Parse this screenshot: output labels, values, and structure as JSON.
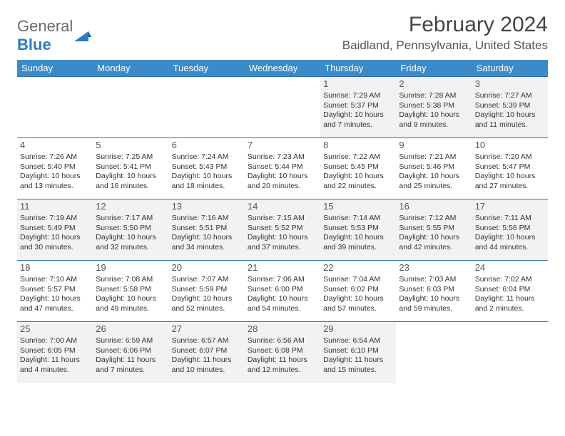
{
  "logo": {
    "part1": "General",
    "part2": "Blue"
  },
  "title": "February 2024",
  "location": "Baidland, Pennsylvania, United States",
  "colors": {
    "header_bg": "#3b8bc9",
    "header_text": "#ffffff",
    "row_border": "#2f6ea8",
    "shade_bg": "#f2f2f2",
    "text": "#333333",
    "logo_gray": "#6b6b6b",
    "logo_blue": "#2f7ac0"
  },
  "dayHeaders": [
    "Sunday",
    "Monday",
    "Tuesday",
    "Wednesday",
    "Thursday",
    "Friday",
    "Saturday"
  ],
  "weeks": [
    [
      null,
      null,
      null,
      null,
      {
        "n": "1",
        "sr": "7:29 AM",
        "ss": "5:37 PM",
        "dl": "10 hours and 7 minutes."
      },
      {
        "n": "2",
        "sr": "7:28 AM",
        "ss": "5:38 PM",
        "dl": "10 hours and 9 minutes."
      },
      {
        "n": "3",
        "sr": "7:27 AM",
        "ss": "5:39 PM",
        "dl": "10 hours and 11 minutes."
      }
    ],
    [
      {
        "n": "4",
        "sr": "7:26 AM",
        "ss": "5:40 PM",
        "dl": "10 hours and 13 minutes."
      },
      {
        "n": "5",
        "sr": "7:25 AM",
        "ss": "5:41 PM",
        "dl": "10 hours and 16 minutes."
      },
      {
        "n": "6",
        "sr": "7:24 AM",
        "ss": "5:43 PM",
        "dl": "10 hours and 18 minutes."
      },
      {
        "n": "7",
        "sr": "7:23 AM",
        "ss": "5:44 PM",
        "dl": "10 hours and 20 minutes."
      },
      {
        "n": "8",
        "sr": "7:22 AM",
        "ss": "5:45 PM",
        "dl": "10 hours and 22 minutes."
      },
      {
        "n": "9",
        "sr": "7:21 AM",
        "ss": "5:46 PM",
        "dl": "10 hours and 25 minutes."
      },
      {
        "n": "10",
        "sr": "7:20 AM",
        "ss": "5:47 PM",
        "dl": "10 hours and 27 minutes."
      }
    ],
    [
      {
        "n": "11",
        "sr": "7:19 AM",
        "ss": "5:49 PM",
        "dl": "10 hours and 30 minutes."
      },
      {
        "n": "12",
        "sr": "7:17 AM",
        "ss": "5:50 PM",
        "dl": "10 hours and 32 minutes."
      },
      {
        "n": "13",
        "sr": "7:16 AM",
        "ss": "5:51 PM",
        "dl": "10 hours and 34 minutes."
      },
      {
        "n": "14",
        "sr": "7:15 AM",
        "ss": "5:52 PM",
        "dl": "10 hours and 37 minutes."
      },
      {
        "n": "15",
        "sr": "7:14 AM",
        "ss": "5:53 PM",
        "dl": "10 hours and 39 minutes."
      },
      {
        "n": "16",
        "sr": "7:12 AM",
        "ss": "5:55 PM",
        "dl": "10 hours and 42 minutes."
      },
      {
        "n": "17",
        "sr": "7:11 AM",
        "ss": "5:56 PM",
        "dl": "10 hours and 44 minutes."
      }
    ],
    [
      {
        "n": "18",
        "sr": "7:10 AM",
        "ss": "5:57 PM",
        "dl": "10 hours and 47 minutes."
      },
      {
        "n": "19",
        "sr": "7:08 AM",
        "ss": "5:58 PM",
        "dl": "10 hours and 49 minutes."
      },
      {
        "n": "20",
        "sr": "7:07 AM",
        "ss": "5:59 PM",
        "dl": "10 hours and 52 minutes."
      },
      {
        "n": "21",
        "sr": "7:06 AM",
        "ss": "6:00 PM",
        "dl": "10 hours and 54 minutes."
      },
      {
        "n": "22",
        "sr": "7:04 AM",
        "ss": "6:02 PM",
        "dl": "10 hours and 57 minutes."
      },
      {
        "n": "23",
        "sr": "7:03 AM",
        "ss": "6:03 PM",
        "dl": "10 hours and 59 minutes."
      },
      {
        "n": "24",
        "sr": "7:02 AM",
        "ss": "6:04 PM",
        "dl": "11 hours and 2 minutes."
      }
    ],
    [
      {
        "n": "25",
        "sr": "7:00 AM",
        "ss": "6:05 PM",
        "dl": "11 hours and 4 minutes."
      },
      {
        "n": "26",
        "sr": "6:59 AM",
        "ss": "6:06 PM",
        "dl": "11 hours and 7 minutes."
      },
      {
        "n": "27",
        "sr": "6:57 AM",
        "ss": "6:07 PM",
        "dl": "11 hours and 10 minutes."
      },
      {
        "n": "28",
        "sr": "6:56 AM",
        "ss": "6:08 PM",
        "dl": "11 hours and 12 minutes."
      },
      {
        "n": "29",
        "sr": "6:54 AM",
        "ss": "6:10 PM",
        "dl": "11 hours and 15 minutes."
      },
      null,
      null
    ]
  ],
  "labels": {
    "sunrise": "Sunrise:",
    "sunset": "Sunset:",
    "daylight": "Daylight:"
  }
}
